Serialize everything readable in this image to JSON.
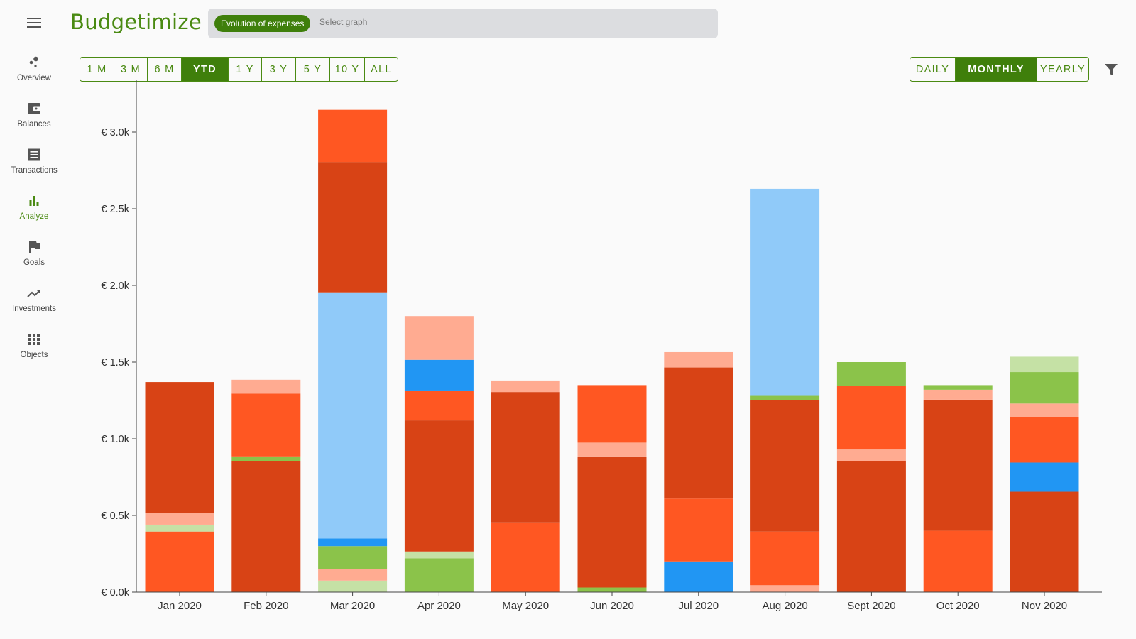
{
  "app": {
    "title": "Budgetimize"
  },
  "search": {
    "chip": "Evolution of expenses",
    "placeholder": "Select graph"
  },
  "sidebar": {
    "items": [
      {
        "label": "Overview",
        "icon": "overview-icon"
      },
      {
        "label": "Balances",
        "icon": "wallet-icon"
      },
      {
        "label": "Transactions",
        "icon": "receipt-icon"
      },
      {
        "label": "Analyze",
        "icon": "bar-chart-icon",
        "active": true
      },
      {
        "label": "Goals",
        "icon": "flag-icon"
      },
      {
        "label": "Investments",
        "icon": "trending-up-icon"
      },
      {
        "label": "Objects",
        "icon": "grid-icon"
      }
    ]
  },
  "range": {
    "options": [
      "1 M",
      "3 M",
      "6 M",
      "YTD",
      "1 Y",
      "3 Y",
      "5 Y",
      "10 Y",
      "ALL"
    ],
    "selected": "YTD"
  },
  "period": {
    "options": [
      "DAILY",
      "MONTHLY",
      "YEARLY"
    ],
    "selected": "MONTHLY"
  },
  "colors": {
    "accent": "#4a8a12",
    "accent_dark": "#3f7f0b",
    "segments": {
      "a": "#ff5722",
      "b": "#d84315",
      "c": "#ffab91",
      "d": "#c5e1a5",
      "e": "#8bc34a",
      "f": "#2196f3",
      "g": "#90caf9"
    }
  },
  "chart_data": {
    "type": "bar",
    "stacked": true,
    "categories": [
      "Jan 2020",
      "Feb 2020",
      "Mar 2020",
      "Apr 2020",
      "May 2020",
      "Jun 2020",
      "Jul 2020",
      "Aug 2020",
      "Sept 2020",
      "Oct 2020",
      "Nov 2020"
    ],
    "ylim": [
      0,
      3200
    ],
    "yticks": [
      0,
      500,
      1000,
      1500,
      2000,
      2500,
      3000
    ],
    "ytick_labels": [
      "€ 0.0k",
      "€ 0.5k",
      "€ 1.0k",
      "€ 1.5k",
      "€ 2.0k",
      "€ 2.5k",
      "€ 3.0k"
    ],
    "stacks": [
      [
        {
          "c": "a",
          "v": 395
        },
        {
          "c": "d",
          "v": 45
        },
        {
          "c": "c",
          "v": 75
        },
        {
          "c": "b",
          "v": 855
        }
      ],
      [
        {
          "c": "b",
          "v": 855
        },
        {
          "c": "e",
          "v": 30
        },
        {
          "c": "a",
          "v": 410
        },
        {
          "c": "c",
          "v": 90
        }
      ],
      [
        {
          "c": "d",
          "v": 75
        },
        {
          "c": "c",
          "v": 75
        },
        {
          "c": "e",
          "v": 150
        },
        {
          "c": "f",
          "v": 50
        },
        {
          "c": "g",
          "v": 1605
        },
        {
          "c": "b",
          "v": 850
        },
        {
          "c": "a",
          "v": 340
        }
      ],
      [
        {
          "c": "e",
          "v": 220
        },
        {
          "c": "d",
          "v": 45
        },
        {
          "c": "b",
          "v": 855
        },
        {
          "c": "a",
          "v": 195
        },
        {
          "c": "f",
          "v": 200
        },
        {
          "c": "c",
          "v": 285
        }
      ],
      [
        {
          "c": "a",
          "v": 455
        },
        {
          "c": "b",
          "v": 850
        },
        {
          "c": "c",
          "v": 75
        }
      ],
      [
        {
          "c": "e",
          "v": 30
        },
        {
          "c": "b",
          "v": 855
        },
        {
          "c": "c",
          "v": 90
        },
        {
          "c": "a",
          "v": 375
        }
      ],
      [
        {
          "c": "f",
          "v": 200
        },
        {
          "c": "a",
          "v": 410
        },
        {
          "c": "b",
          "v": 855
        },
        {
          "c": "c",
          "v": 100
        }
      ],
      [
        {
          "c": "c",
          "v": 45
        },
        {
          "c": "a",
          "v": 350
        },
        {
          "c": "b",
          "v": 855
        },
        {
          "c": "e",
          "v": 30
        },
        {
          "c": "g",
          "v": 1350
        }
      ],
      [
        {
          "c": "b",
          "v": 855
        },
        {
          "c": "c",
          "v": 75
        },
        {
          "c": "a",
          "v": 415
        },
        {
          "c": "e",
          "v": 155
        }
      ],
      [
        {
          "c": "a",
          "v": 400
        },
        {
          "c": "b",
          "v": 855
        },
        {
          "c": "c",
          "v": 65
        },
        {
          "c": "e",
          "v": 30
        }
      ],
      [
        {
          "c": "b",
          "v": 655
        },
        {
          "c": "f",
          "v": 190
        },
        {
          "c": "a",
          "v": 295
        },
        {
          "c": "c",
          "v": 90
        },
        {
          "c": "e",
          "v": 205
        },
        {
          "c": "d",
          "v": 100
        }
      ]
    ]
  }
}
